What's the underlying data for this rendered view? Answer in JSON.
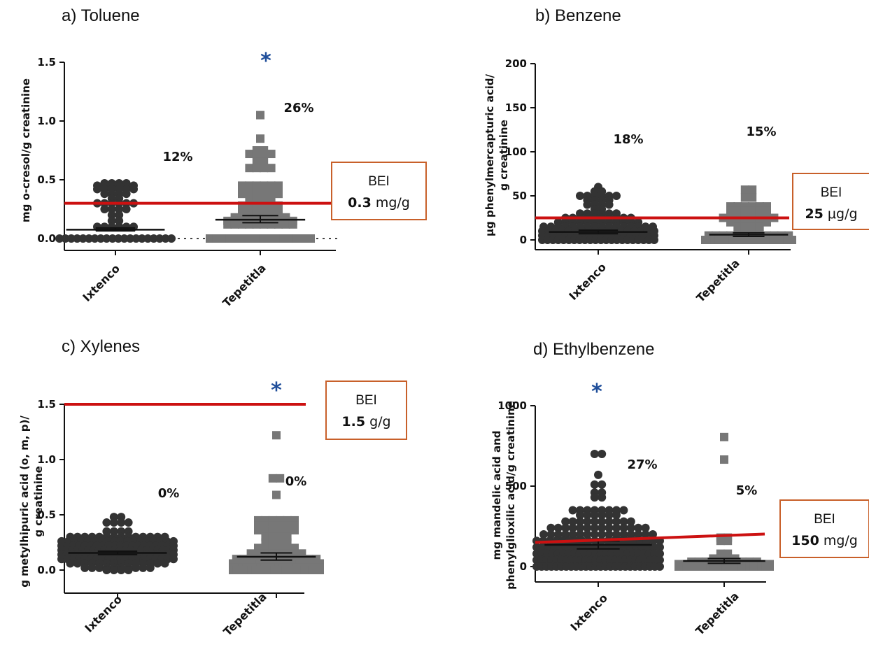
{
  "colors": {
    "threshold": "#cc1111",
    "star": "#1f4e9a",
    "box": "#c8602a",
    "dark": "#333333",
    "gray": "#777777"
  },
  "chart_data": [
    {
      "type": "scatter",
      "title": "a) Toluene",
      "ylabel": [
        "mg o-cresol/g creatinine"
      ],
      "ylim": [
        -0.05,
        1.55
      ],
      "yticks": [
        0.0,
        0.5,
        1.0,
        1.5
      ],
      "ytick_labels": [
        "0.0",
        "0.5",
        "1.0",
        "1.5"
      ],
      "categories": [
        "Ixtenco",
        "Tepetitla"
      ],
      "percentages": [
        "12%",
        "26%"
      ],
      "significance": "*",
      "threshold": 0.3,
      "bei": {
        "label": "BEI",
        "value": "0.3",
        "unit": " mg/g"
      },
      "zero_dotted_line": true,
      "series": [
        {
          "name": "Ixtenco",
          "marker": "circle",
          "groups": [
            [
              0.47,
              4
            ],
            [
              0.45,
              6
            ],
            [
              0.42,
              6
            ],
            [
              0.38,
              4
            ],
            [
              0.34,
              2
            ],
            [
              0.3,
              6
            ],
            [
              0.25,
              4
            ],
            [
              0.2,
              2
            ],
            [
              0.15,
              2
            ],
            [
              0.1,
              6
            ],
            [
              0.0,
              20
            ]
          ],
          "mean": 0.075,
          "err": [
            0.065,
            0.09
          ]
        },
        {
          "name": "Tepetitla",
          "marker": "square",
          "groups": [
            [
              1.05,
              1
            ],
            [
              0.85,
              1
            ],
            [
              0.75,
              2
            ],
            [
              0.72,
              4
            ],
            [
              0.65,
              2
            ],
            [
              0.6,
              4
            ],
            [
              0.45,
              6
            ],
            [
              0.42,
              6
            ],
            [
              0.38,
              6
            ],
            [
              0.32,
              4
            ],
            [
              0.28,
              6
            ],
            [
              0.22,
              6
            ],
            [
              0.18,
              8
            ],
            [
              0.15,
              10
            ],
            [
              0.12,
              10
            ],
            [
              0.0,
              16
            ]
          ],
          "mean": 0.16,
          "err": [
            0.135,
            0.195
          ]
        }
      ]
    },
    {
      "type": "scatter",
      "title": "b) Benzene",
      "ylabel": [
        "μg phenylmercapturic acid/",
        "g creatinine"
      ],
      "ylim": [
        -10,
        205
      ],
      "yticks": [
        0,
        50,
        100,
        150,
        200
      ],
      "ytick_labels": [
        "0",
        "50",
        "100",
        "150",
        "200"
      ],
      "categories": [
        "Ixtenco",
        "Tepetitla"
      ],
      "percentages": [
        "18%",
        "15%"
      ],
      "significance": "",
      "threshold": 25,
      "bei": {
        "label": "BEI",
        "value": "25",
        "unit": " μg/g"
      },
      "zero_dotted_line": false,
      "series": [
        {
          "name": "Ixtenco",
          "marker": "circle",
          "groups": [
            [
              60,
              1
            ],
            [
              55,
              2
            ],
            [
              50,
              6
            ],
            [
              45,
              4
            ],
            [
              40,
              4
            ],
            [
              35,
              2
            ],
            [
              30,
              6
            ],
            [
              25,
              10
            ],
            [
              20,
              12
            ],
            [
              15,
              16
            ],
            [
              10,
              18
            ],
            [
              5,
              20
            ],
            [
              0,
              22
            ]
          ],
          "mean": 9,
          "err": [
            7,
            11
          ]
        },
        {
          "name": "Tepetitla",
          "marker": "square",
          "groups": [
            [
              57,
              2
            ],
            [
              48,
              2
            ],
            [
              38,
              6
            ],
            [
              33,
              6
            ],
            [
              28,
              6
            ],
            [
              25,
              8
            ],
            [
              20,
              6
            ],
            [
              15,
              4
            ],
            [
              10,
              4
            ],
            [
              5,
              12
            ],
            [
              0,
              20
            ]
          ],
          "mean": 6,
          "err": [
            4,
            8
          ]
        }
      ]
    },
    {
      "type": "scatter",
      "title": "c) Xylenes",
      "ylabel": [
        "g metylhipuric acid (o, m, p)/",
        "g creatinine"
      ],
      "ylim": [
        -0.2,
        1.55
      ],
      "yticks": [
        0.0,
        0.5,
        1.0,
        1.5
      ],
      "ytick_labels": [
        "0.0",
        "0.5",
        "1.0",
        "1.5"
      ],
      "categories": [
        "Ixtenco",
        "Tepetitla"
      ],
      "percentages": [
        "0%",
        "0%"
      ],
      "significance": "*",
      "threshold": 1.5,
      "bei": {
        "label": "BEI",
        "value": "1.5",
        "unit": " g/g"
      },
      "zero_dotted_line": false,
      "series": [
        {
          "name": "Ixtenco",
          "marker": "circle",
          "groups": [
            [
              0.48,
              2
            ],
            [
              0.43,
              4
            ],
            [
              0.35,
              4
            ],
            [
              0.3,
              14
            ],
            [
              0.26,
              18
            ],
            [
              0.22,
              20
            ],
            [
              0.18,
              22
            ],
            [
              0.14,
              22
            ],
            [
              0.1,
              20
            ],
            [
              0.06,
              14
            ],
            [
              0.02,
              10
            ],
            [
              0.0,
              4
            ]
          ],
          "mean": 0.155,
          "err": [
            0.14,
            0.17
          ]
        },
        {
          "name": "Tepetitla",
          "marker": "square",
          "groups": [
            [
              1.22,
              1
            ],
            [
              0.83,
              2
            ],
            [
              0.68,
              1
            ],
            [
              0.45,
              6
            ],
            [
              0.4,
              6
            ],
            [
              0.36,
              6
            ],
            [
              0.3,
              4
            ],
            [
              0.25,
              4
            ],
            [
              0.2,
              6
            ],
            [
              0.15,
              8
            ],
            [
              0.1,
              12
            ],
            [
              0.06,
              14
            ],
            [
              0.02,
              20
            ],
            [
              0.0,
              24
            ]
          ],
          "mean": 0.12,
          "err": [
            0.09,
            0.155
          ]
        }
      ]
    },
    {
      "type": "scatter",
      "title": "d) Ethylbenzene",
      "ylabel": [
        "mg mandelic acid and",
        "phenylglioxilic acid/g creatinine"
      ],
      "ylim": [
        -50,
        1010
      ],
      "yticks": [
        0,
        500,
        1000
      ],
      "ytick_labels": [
        "0",
        "500",
        "1000"
      ],
      "categories": [
        "Ixtenco",
        "Tepetitla"
      ],
      "percentages": [
        "27%",
        "5%"
      ],
      "significance": "*",
      "threshold": 150,
      "bei": {
        "label": "BEI",
        "value": "150",
        "unit": " mg/g"
      },
      "zero_dotted_line": false,
      "series": [
        {
          "name": "Ixtenco",
          "marker": "circle",
          "groups": [
            [
              700,
              2
            ],
            [
              570,
              1
            ],
            [
              510,
              2
            ],
            [
              460,
              2
            ],
            [
              430,
              2
            ],
            [
              350,
              8
            ],
            [
              320,
              6
            ],
            [
              280,
              10
            ],
            [
              240,
              14
            ],
            [
              200,
              16
            ],
            [
              160,
              20
            ],
            [
              120,
              22
            ],
            [
              80,
              24
            ],
            [
              40,
              26
            ],
            [
              0,
              26
            ]
          ],
          "mean": 135,
          "err": [
            110,
            160
          ]
        },
        {
          "name": "Tepetitla",
          "marker": "square",
          "groups": [
            [
              805,
              1
            ],
            [
              665,
              1
            ],
            [
              180,
              2
            ],
            [
              160,
              2
            ],
            [
              80,
              2
            ],
            [
              50,
              4
            ],
            [
              30,
              10
            ],
            [
              15,
              14
            ],
            [
              0,
              24
            ]
          ],
          "mean": 35,
          "err": [
            20,
            50
          ]
        }
      ]
    }
  ]
}
